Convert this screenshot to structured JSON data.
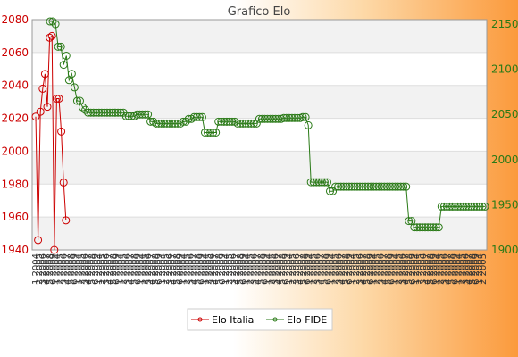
{
  "chart_data": {
    "type": "line",
    "title": "Grafico Elo",
    "y_left": {
      "min": 1940,
      "max": 2080,
      "ticks": [
        1940,
        1960,
        1980,
        2000,
        2020,
        2040,
        2060,
        2080
      ],
      "color": "#cc0000"
    },
    "y_right": {
      "min": 1900,
      "max": 2155,
      "ticks": [
        1900,
        1950,
        2000,
        2050,
        2100,
        2150
      ],
      "color": "#2a7a17"
    },
    "x_tick_count": 128,
    "x_label_samples": [
      "1 2004",
      "2 2005",
      "3 2006",
      "4 2007",
      "5 2008",
      "6 2009"
    ],
    "grid": true,
    "legend_position": "bottom",
    "series": [
      {
        "name": "Elo Italia",
        "axis": "left",
        "color": "#cc0000",
        "x_index": [
          0,
          1,
          2,
          3,
          4,
          5,
          6,
          7,
          8,
          9,
          10,
          11,
          12,
          13
        ],
        "values": [
          2021,
          1946,
          2024,
          2038,
          2047,
          2027,
          2069,
          2070,
          1940,
          2032,
          2032,
          2012,
          1981,
          1958
        ]
      },
      {
        "name": "Elo FIDE",
        "axis": "right",
        "color": "#2a7a17",
        "values": [
          2153,
          2153,
          2150,
          2125,
          2125,
          2105,
          2115,
          2088,
          2095,
          2080,
          2065,
          2065,
          2058,
          2055,
          2052,
          2052,
          2052,
          2052,
          2052,
          2052,
          2052,
          2052,
          2052,
          2052,
          2052,
          2052,
          2052,
          2052,
          2048,
          2048,
          2048,
          2048,
          2050,
          2050,
          2050,
          2050,
          2050,
          2042,
          2042,
          2040,
          2040,
          2040,
          2040,
          2040,
          2040,
          2040,
          2040,
          2040,
          2040,
          2042,
          2042,
          2045,
          2045,
          2047,
          2047,
          2047,
          2047,
          2030,
          2030,
          2030,
          2030,
          2030,
          2042,
          2042,
          2042,
          2042,
          2042,
          2042,
          2042,
          2040,
          2040,
          2040,
          2040,
          2040,
          2040,
          2040,
          2040,
          2045,
          2045,
          2045,
          2045,
          2045,
          2045,
          2045,
          2045,
          2045,
          2046,
          2046,
          2046,
          2046,
          2046,
          2046,
          2046,
          2047,
          2047,
          2038,
          1975,
          1975,
          1975,
          1975,
          1975,
          1975,
          1975,
          1965,
          1965,
          1970,
          1970,
          1970,
          1970,
          1970,
          1970,
          1970,
          1970,
          1970,
          1970,
          1970,
          1970,
          1970,
          1970,
          1970,
          1970,
          1970,
          1970,
          1970,
          1970,
          1970,
          1970,
          1970,
          1970,
          1970,
          1970,
          1970,
          1932,
          1932,
          1925,
          1925,
          1925,
          1925,
          1925,
          1925,
          1925,
          1925,
          1925,
          1925,
          1948,
          1948,
          1948,
          1948,
          1948,
          1948,
          1948,
          1948,
          1948,
          1948,
          1948,
          1948,
          1948,
          1948,
          1948,
          1948,
          1948
        ]
      }
    ]
  }
}
